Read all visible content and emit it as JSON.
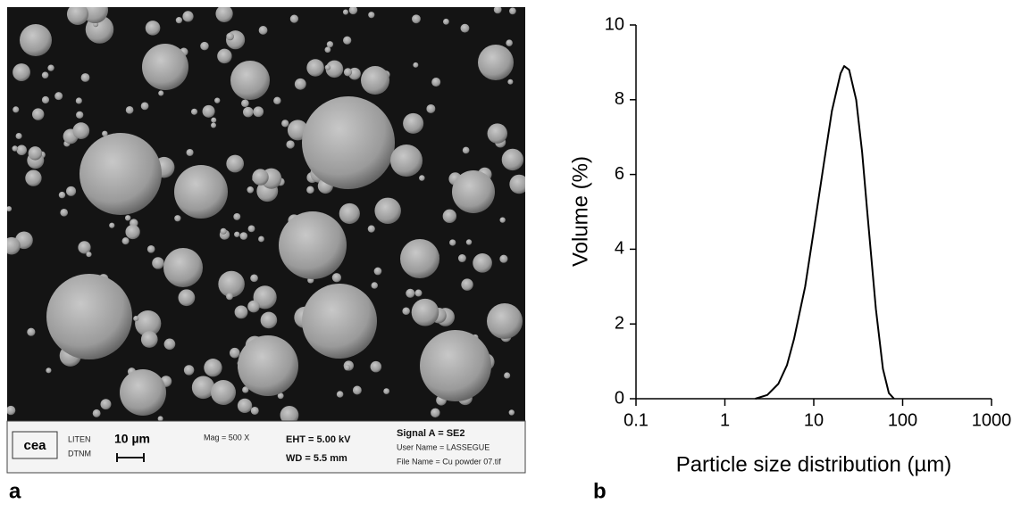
{
  "panel_labels": [
    "a",
    "b"
  ],
  "sem_image": {
    "logo": "cea",
    "lab": "LITEN",
    "department": "DTNM",
    "scale_bar": "10 µm",
    "magnification": "Mag =   500 X",
    "eht": "EHT =  5.00 kV",
    "wd": "WD =  5.5 mm",
    "signal": "Signal A = SE2",
    "user": "User Name = LASSEGUE",
    "file": "File Name = Cu powder 07.tif"
  },
  "chart_data": {
    "type": "line",
    "x_label": "Particle size distribution (µm)",
    "y_label": "Volume (%)",
    "log_x": true,
    "color": "#000000",
    "x": [
      2.2,
      3,
      4,
      5,
      6,
      8,
      10,
      13,
      16,
      20,
      22,
      25,
      30,
      35,
      40,
      50,
      60,
      70,
      80
    ],
    "values": [
      0,
      0.1,
      0.4,
      0.9,
      1.6,
      3.0,
      4.5,
      6.3,
      7.7,
      8.7,
      8.9,
      8.8,
      8.0,
      6.6,
      5.0,
      2.4,
      0.8,
      0.15,
      0
    ],
    "xlim": [
      0.1,
      1000
    ],
    "xticks": [
      0.1,
      1,
      10,
      100,
      1000
    ],
    "ylim": [
      0,
      10
    ],
    "yticks": [
      0,
      2,
      4,
      6,
      8,
      10
    ]
  }
}
